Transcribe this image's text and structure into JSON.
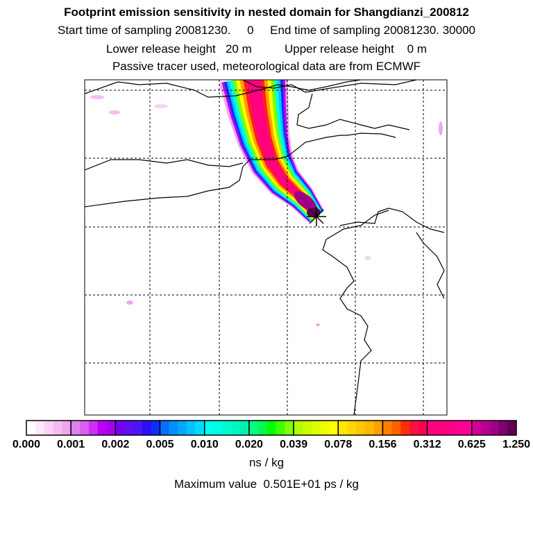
{
  "chart_data": {
    "type": "heatmap",
    "title": "Footprint emission sensitivity in nested domain for Shangdianzi_200812",
    "subtitle_lines": [
      "Start time of sampling 20081230.     0     End time of sampling 20081230. 30000",
      "Lower release height   20 m          Upper release height    0 m",
      "Passive tracer used, meteorological data are from ECMWF"
    ],
    "colorbar": {
      "tick_labels": [
        "0.000",
        "0.001",
        "0.002",
        "0.005",
        "0.010",
        "0.020",
        "0.039",
        "0.078",
        "0.156",
        "0.312",
        "0.625",
        "1.250"
      ],
      "unit_label": "ns / kg",
      "colors": [
        [
          "#ffffff",
          "#fde8fb",
          "#f9d2f6",
          "#f4bcf1",
          "#efa6ec"
        ],
        [
          "#e080f0",
          "#d860f0",
          "#cc30f4",
          "#bb00f6",
          "#a800f0"
        ],
        [
          "#7a00f0",
          "#6010f4",
          "#4818f8",
          "#2a10fb",
          "#0a30ff"
        ],
        [
          "#0070ff",
          "#0090ff",
          "#00a8ff",
          "#00c4ff",
          "#00dcff"
        ],
        [
          "#00ffee",
          "#00ffe0",
          "#00fcd0",
          "#00f8c0",
          "#00f0b0"
        ],
        [
          "#00ff80",
          "#00fa50",
          "#00ff00",
          "#40ff00",
          "#80ff00"
        ],
        [
          "#b0ff00",
          "#c8ff00",
          "#ddff00",
          "#eeff00",
          "#ffff00"
        ],
        [
          "#ffe800",
          "#ffd800",
          "#ffc800",
          "#ffb800",
          "#ffa000"
        ],
        [
          "#ff8000",
          "#ff6000",
          "#ff3000",
          "#ff1040",
          "#ff0050"
        ],
        [
          "#ff0080",
          "#ff0080",
          "#ff0088",
          "#ff0090",
          "#ff0098"
        ],
        [
          "#d00098",
          "#b80090",
          "#a00088",
          "#800070",
          "#600050"
        ]
      ]
    },
    "max_value_text": "Maximum value  0.501E+01 ps / kg",
    "receptor": "Shangdianzi"
  }
}
